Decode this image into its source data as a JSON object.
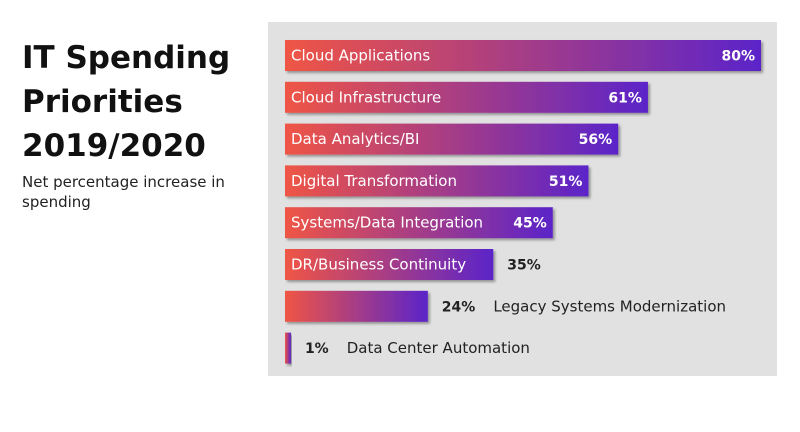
{
  "header": {
    "title": "IT Spending Priorities 2019/2020",
    "subtitle": "Net percentage increase in spending"
  },
  "colors": {
    "bar_start": "#ef5545",
    "bar_end": "#5b24c9",
    "panel": "#e1e1e1"
  },
  "chart_data": {
    "type": "bar",
    "orientation": "horizontal",
    "categories": [
      "Cloud Applications",
      "Cloud Infrastructure",
      "Data Analytics/BI",
      "Digital Transformation",
      "Systems/Data Integration",
      "DR/Business Continuity",
      "Legacy Systems Modernization",
      "Data Center Automation"
    ],
    "values": [
      80,
      61,
      56,
      51,
      45,
      35,
      24,
      1
    ],
    "value_labels": [
      "80%",
      "61%",
      "56%",
      "51%",
      "45%",
      "35%",
      "24%",
      "1%"
    ],
    "xlim": [
      0,
      80
    ],
    "grid": false,
    "legend": "none"
  }
}
